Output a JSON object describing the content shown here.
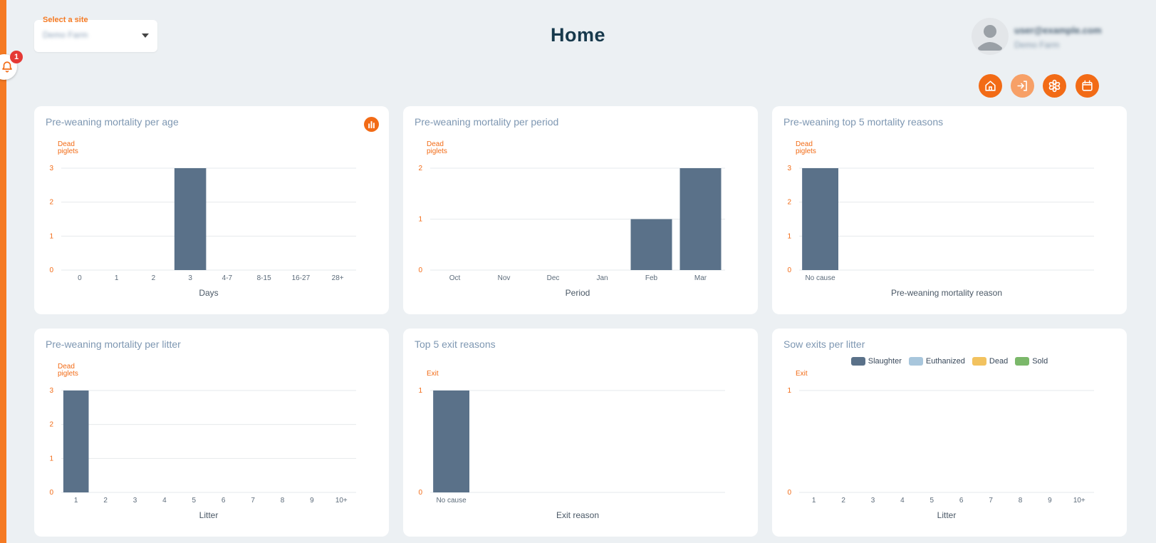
{
  "header": {
    "title": "Home",
    "site_select": {
      "label": "Select a site",
      "value": "Demo Farm"
    },
    "user": {
      "email": "user@example.com",
      "site": "Demo Farm"
    },
    "notifications": {
      "count": "1"
    }
  },
  "quick_actions": [
    "home-icon",
    "sign-in-icon",
    "medical-icon",
    "calendar-icon"
  ],
  "colors": {
    "accent": "#f26b16",
    "bar": "#5a7189",
    "grid": "#e6e9ec"
  },
  "charts": [
    {
      "title": "Pre-weaning mortality per age",
      "has_icon": true,
      "chart_data": {
        "type": "bar",
        "ylabel": "Dead\npiglets",
        "xlabel": "Days",
        "categories": [
          "0",
          "1",
          "2",
          "3",
          "4-7",
          "8-15",
          "16-27",
          "28+"
        ],
        "values": [
          0,
          0,
          0,
          3,
          0,
          0,
          0,
          0
        ],
        "yticks": [
          0,
          1,
          2,
          3
        ],
        "ylim": [
          0,
          3
        ]
      }
    },
    {
      "title": "Pre-weaning mortality per period",
      "has_icon": false,
      "chart_data": {
        "type": "bar",
        "ylabel": "Dead\npiglets",
        "xlabel": "Period",
        "categories": [
          "Oct",
          "Nov",
          "Dec",
          "Jan",
          "Feb",
          "Mar"
        ],
        "values": [
          0,
          0,
          0,
          0,
          1,
          2
        ],
        "yticks": [
          0,
          1,
          2
        ],
        "ylim": [
          0,
          2
        ]
      }
    },
    {
      "title": "Pre-weaning top 5 mortality reasons",
      "has_icon": false,
      "chart_data": {
        "type": "bar",
        "ylabel": "Dead\npiglets",
        "xlabel": "Pre-weaning mortality reason",
        "categories": [
          "No cause"
        ],
        "slots": 7,
        "values": [
          3
        ],
        "yticks": [
          0,
          1,
          2,
          3
        ],
        "ylim": [
          0,
          3
        ]
      }
    },
    {
      "title": "Pre-weaning mortality per litter",
      "has_icon": false,
      "chart_data": {
        "type": "bar",
        "ylabel": "Dead\npiglets",
        "xlabel": "Litter",
        "categories": [
          "1",
          "2",
          "3",
          "4",
          "5",
          "6",
          "7",
          "8",
          "9",
          "10+"
        ],
        "values": [
          3,
          0,
          0,
          0,
          0,
          0,
          0,
          0,
          0,
          0
        ],
        "yticks": [
          0,
          1,
          2,
          3
        ],
        "ylim": [
          0,
          3
        ]
      }
    },
    {
      "title": "Top 5 exit reasons",
      "has_icon": false,
      "chart_data": {
        "type": "bar",
        "ylabel": "Exit",
        "xlabel": "Exit reason",
        "categories": [
          "No cause"
        ],
        "slots": 7,
        "values": [
          1
        ],
        "yticks": [
          0,
          1
        ],
        "ylim": [
          0,
          1
        ]
      }
    },
    {
      "title": "Sow exits per litter",
      "has_icon": false,
      "chart_data": {
        "type": "bar",
        "ylabel": "Exit",
        "xlabel": "Litter",
        "categories": [
          "1",
          "2",
          "3",
          "4",
          "5",
          "6",
          "7",
          "8",
          "9",
          "10+"
        ],
        "series": [
          {
            "name": "Slaughter",
            "color": "#5a7189",
            "values": [
              0,
              0,
              0,
              0,
              0,
              0,
              0,
              0,
              0,
              0
            ]
          },
          {
            "name": "Euthanized",
            "color": "#a8c6dc",
            "values": [
              0,
              0,
              0,
              0,
              0,
              0,
              0,
              0,
              0,
              0
            ]
          },
          {
            "name": "Dead",
            "color": "#f2c25f",
            "values": [
              0,
              0,
              0,
              0,
              0,
              0,
              0,
              0,
              0,
              0
            ]
          },
          {
            "name": "Sold",
            "color": "#7bb86a",
            "values": [
              0,
              0,
              0,
              0,
              0,
              0,
              0,
              0,
              0,
              0
            ]
          }
        ],
        "yticks": [
          0,
          1
        ],
        "ylim": [
          0,
          1
        ]
      }
    }
  ]
}
